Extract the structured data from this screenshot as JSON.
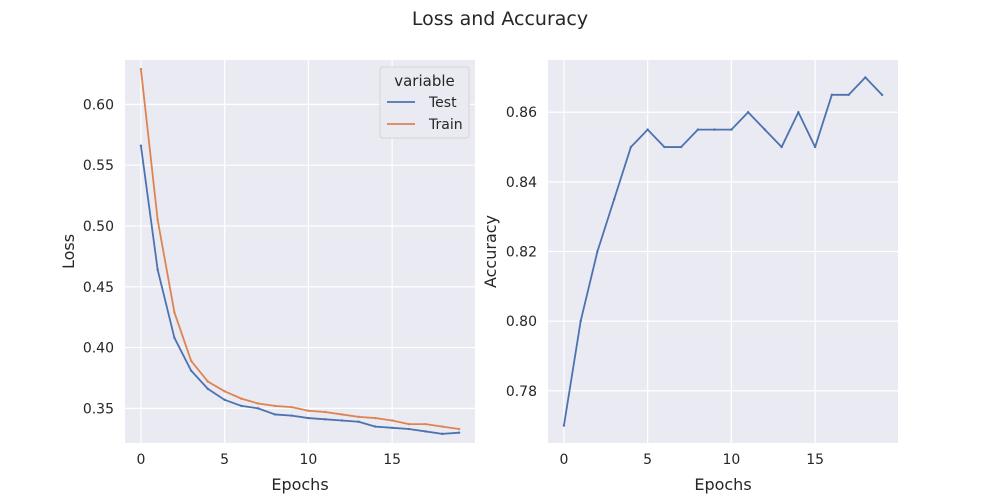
{
  "title": "Loss and Accuracy",
  "chart_data": [
    {
      "type": "line",
      "title": "",
      "xlabel": "Epochs",
      "ylabel": "Loss",
      "x": [
        0,
        1,
        2,
        3,
        4,
        5,
        6,
        7,
        8,
        9,
        10,
        11,
        12,
        13,
        14,
        15,
        16,
        17,
        18,
        19
      ],
      "xlim": [
        -0.95,
        19.95
      ],
      "ylim": [
        0.3215,
        0.6365
      ],
      "xticks": [
        0,
        5,
        10,
        15
      ],
      "xtick_labels": [
        "0",
        "5",
        "10",
        "15"
      ],
      "yticks": [
        0.35,
        0.4,
        0.45,
        0.5,
        0.55,
        0.6
      ],
      "ytick_labels": [
        "0.35",
        "0.40",
        "0.45",
        "0.50",
        "0.55",
        "0.60"
      ],
      "grid": true,
      "legend": {
        "title": "variable",
        "placement": "top-right"
      },
      "series": [
        {
          "name": "Test",
          "color": "#4c72b0",
          "values": [
            0.566,
            0.464,
            0.408,
            0.381,
            0.366,
            0.357,
            0.352,
            0.35,
            0.345,
            0.344,
            0.342,
            0.341,
            0.34,
            0.339,
            0.335,
            0.334,
            0.333,
            0.331,
            0.329,
            0.33
          ]
        },
        {
          "name": "Train",
          "color": "#dd8452",
          "values": [
            0.629,
            0.505,
            0.429,
            0.389,
            0.372,
            0.364,
            0.358,
            0.354,
            0.352,
            0.351,
            0.348,
            0.347,
            0.345,
            0.343,
            0.342,
            0.34,
            0.337,
            0.337,
            0.335,
            0.333
          ]
        }
      ]
    },
    {
      "type": "line",
      "title": "",
      "xlabel": "Epochs",
      "ylabel": "Accuracy",
      "x": [
        0,
        1,
        2,
        3,
        4,
        5,
        6,
        7,
        8,
        9,
        10,
        11,
        12,
        13,
        14,
        15,
        16,
        17,
        18,
        19
      ],
      "xlim": [
        -0.95,
        19.95
      ],
      "ylim": [
        0.765,
        0.875
      ],
      "xticks": [
        0,
        5,
        10,
        15
      ],
      "xtick_labels": [
        "0",
        "5",
        "10",
        "15"
      ],
      "yticks": [
        0.78,
        0.8,
        0.82,
        0.84,
        0.86
      ],
      "ytick_labels": [
        "0.78",
        "0.80",
        "0.82",
        "0.84",
        "0.86"
      ],
      "grid": true,
      "series": [
        {
          "color": "#4c72b0",
          "values": [
            0.77,
            0.8,
            0.82,
            0.835,
            0.85,
            0.855,
            0.85,
            0.85,
            0.855,
            0.855,
            0.855,
            0.86,
            0.855,
            0.85,
            0.86,
            0.85,
            0.865,
            0.865,
            0.87,
            0.865
          ]
        }
      ]
    }
  ]
}
